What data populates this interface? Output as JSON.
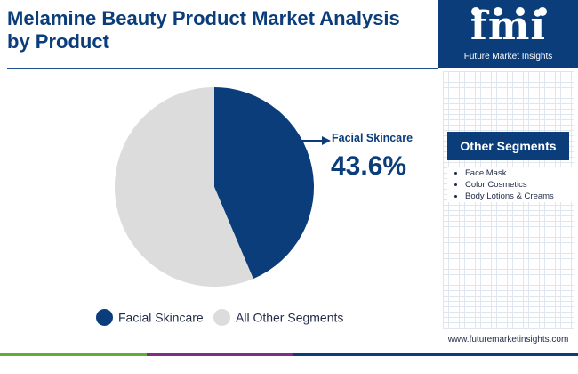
{
  "title": "Melamine Beauty Product Market Analysis by Product",
  "brand": {
    "logo_text": "fmi",
    "name": "Future Market Insights",
    "url": "www.futuremarketinsights.com"
  },
  "sidebar": {
    "heading": "Other Segments",
    "items": [
      "Face Mask",
      "Color Cosmetics",
      "Body Lotions & Creams"
    ]
  },
  "annotation": {
    "label": "Facial Skincare",
    "value": "43.6%"
  },
  "colors": {
    "primary": "#0a3d7a",
    "other": "#dcdcdc",
    "bar_green": "#5fae3b",
    "bar_purple": "#7b2f87",
    "bar_blue": "#0a3d7a"
  },
  "chart_data": {
    "type": "pie",
    "slices": [
      {
        "label": "Facial Skincare",
        "value": 43.6,
        "color": "#0a3d7a"
      },
      {
        "label": "All Other Segments",
        "value": 56.4,
        "color": "#dcdcdc"
      }
    ],
    "legend": [
      "Facial Skincare",
      "All Other Segments"
    ],
    "legend_position": "bottom"
  }
}
